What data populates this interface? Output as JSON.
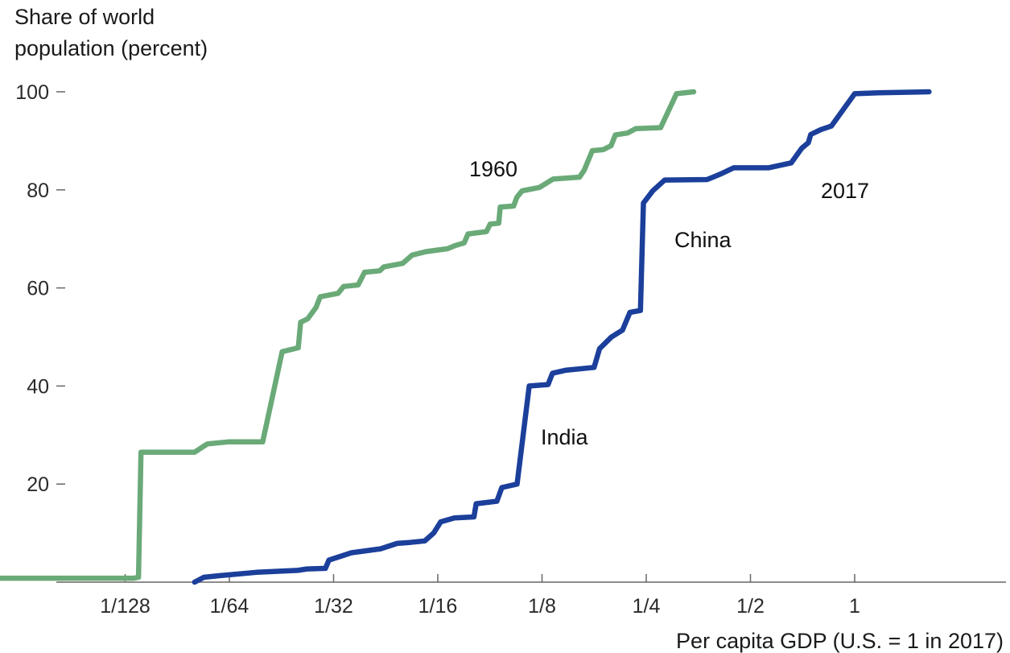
{
  "chart_data": {
    "type": "line",
    "title": "",
    "xlabel": "Per capita GDP (U.S. = 1 in 2017)",
    "ylabel": "Share of world population (percent)",
    "ylabel_lines": [
      "Share of world",
      "population (percent)"
    ],
    "x_scale": "log2",
    "xlim": [
      0.00331,
      3.5
    ],
    "ylim": [
      0,
      100
    ],
    "x_ticks": [
      {
        "value": 0.0078125,
        "label": "1/128"
      },
      {
        "value": 0.015625,
        "label": "1/64"
      },
      {
        "value": 0.03125,
        "label": "1/32"
      },
      {
        "value": 0.0625,
        "label": "1/16"
      },
      {
        "value": 0.125,
        "label": "1/8"
      },
      {
        "value": 0.25,
        "label": "1/4"
      },
      {
        "value": 0.5,
        "label": "1/2"
      },
      {
        "value": 1,
        "label": "1"
      }
    ],
    "y_ticks": [
      {
        "value": 20,
        "label": "20"
      },
      {
        "value": 40,
        "label": "40"
      },
      {
        "value": 60,
        "label": "60"
      },
      {
        "value": 80,
        "label": "80"
      },
      {
        "value": 100,
        "label": "100"
      }
    ],
    "grid": false,
    "legend": "none",
    "series": [
      {
        "name": "1960",
        "color": "#6aaa78",
        "points": [
          [
            0.00331,
            0.8
          ],
          [
            0.00828,
            0.8
          ],
          [
            0.00854,
            1.0
          ],
          [
            0.00868,
            26.5
          ],
          [
            0.0124,
            26.5
          ],
          [
            0.0135,
            28.2
          ],
          [
            0.0155,
            28.6
          ],
          [
            0.0195,
            28.6
          ],
          [
            0.0222,
            47.0
          ],
          [
            0.0247,
            47.8
          ],
          [
            0.0251,
            53.0
          ],
          [
            0.0263,
            53.7
          ],
          [
            0.0278,
            56.0
          ],
          [
            0.0286,
            58.2
          ],
          [
            0.0322,
            58.9
          ],
          [
            0.0334,
            60.3
          ],
          [
            0.0368,
            60.6
          ],
          [
            0.0384,
            63.2
          ],
          [
            0.0425,
            63.5
          ],
          [
            0.0437,
            64.3
          ],
          [
            0.0495,
            65.0
          ],
          [
            0.0527,
            66.7
          ],
          [
            0.0578,
            67.4
          ],
          [
            0.0667,
            68.0
          ],
          [
            0.0699,
            68.6
          ],
          [
            0.0745,
            69.2
          ],
          [
            0.0764,
            71.0
          ],
          [
            0.0864,
            71.5
          ],
          [
            0.0885,
            73.0
          ],
          [
            0.0937,
            73.2
          ],
          [
            0.0947,
            76.5
          ],
          [
            0.1035,
            76.7
          ],
          [
            0.1058,
            78.5
          ],
          [
            0.1095,
            79.8
          ],
          [
            0.1229,
            80.5
          ],
          [
            0.1345,
            82.2
          ],
          [
            0.1604,
            82.6
          ],
          [
            0.1655,
            84.0
          ],
          [
            0.1747,
            88.0
          ],
          [
            0.1875,
            88.2
          ],
          [
            0.1979,
            89.0
          ],
          [
            0.2035,
            91.2
          ],
          [
            0.2207,
            91.6
          ],
          [
            0.2332,
            92.5
          ],
          [
            0.2751,
            92.7
          ],
          [
            0.3058,
            99.6
          ],
          [
            0.3428,
            100.0
          ]
        ]
      },
      {
        "name": "2017",
        "color": "#1b3f9a",
        "points": [
          [
            0.0124,
            0.0
          ],
          [
            0.0132,
            1.0
          ],
          [
            0.0145,
            1.3
          ],
          [
            0.0187,
            2.0
          ],
          [
            0.0246,
            2.4
          ],
          [
            0.0262,
            2.7
          ],
          [
            0.0296,
            2.8
          ],
          [
            0.0303,
            4.5
          ],
          [
            0.0352,
            6.0
          ],
          [
            0.0427,
            6.8
          ],
          [
            0.0477,
            7.9
          ],
          [
            0.0519,
            8.1
          ],
          [
            0.0573,
            8.4
          ],
          [
            0.0608,
            10.0
          ],
          [
            0.0637,
            12.3
          ],
          [
            0.0698,
            13.1
          ],
          [
            0.0795,
            13.3
          ],
          [
            0.0807,
            16.0
          ],
          [
            0.0926,
            16.5
          ],
          [
            0.0957,
            19.3
          ],
          [
            0.1059,
            20.0
          ],
          [
            0.1148,
            40.0
          ],
          [
            0.1301,
            40.3
          ],
          [
            0.134,
            42.6
          ],
          [
            0.1459,
            43.2
          ],
          [
            0.1767,
            43.8
          ],
          [
            0.1833,
            47.6
          ],
          [
            0.1984,
            50.0
          ],
          [
            0.2135,
            51.4
          ],
          [
            0.2243,
            55.0
          ],
          [
            0.2406,
            55.4
          ],
          [
            0.2454,
            77.3
          ],
          [
            0.2611,
            79.8
          ],
          [
            0.2826,
            82.0
          ],
          [
            0.3747,
            82.1
          ],
          [
            0.4091,
            83.2
          ],
          [
            0.447,
            84.5
          ],
          [
            0.5636,
            84.5
          ],
          [
            0.6554,
            85.5
          ],
          [
            0.7034,
            88.5
          ],
          [
            0.7348,
            89.6
          ],
          [
            0.7464,
            91.3
          ],
          [
            0.799,
            92.3
          ],
          [
            0.8564,
            93.0
          ],
          [
            1.0,
            99.6
          ],
          [
            1.17,
            99.8
          ],
          [
            1.64,
            100.0
          ]
        ]
      }
    ],
    "annotations": [
      {
        "text": "1960",
        "series": "1960"
      },
      {
        "text": "2017",
        "series": "2017"
      },
      {
        "text": "China",
        "series": "2017"
      },
      {
        "text": "India",
        "series": "2017"
      }
    ]
  }
}
